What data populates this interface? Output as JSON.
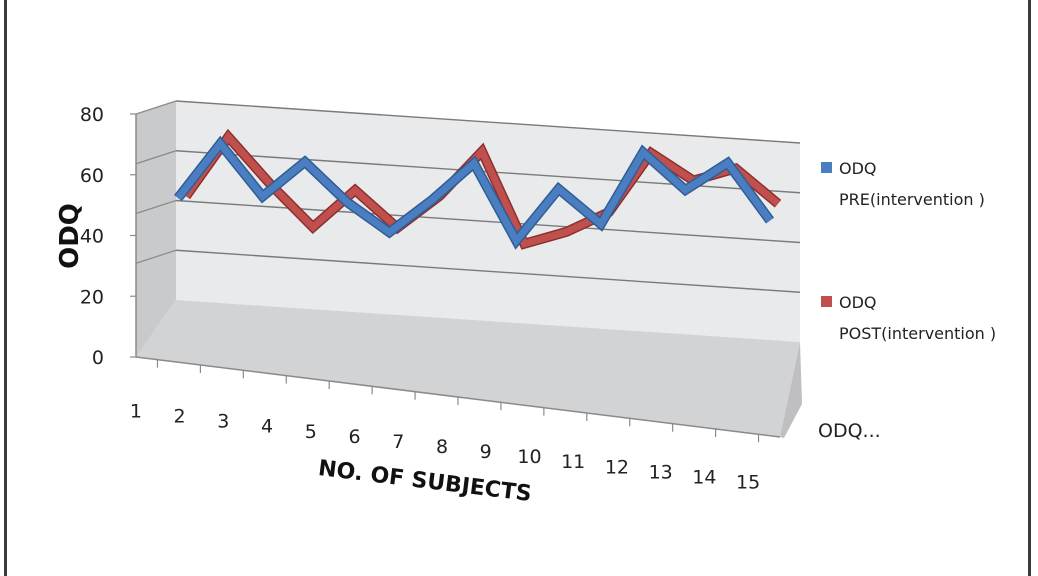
{
  "chart_data": {
    "type": "line",
    "style": "3d-line",
    "ylabel": "ODQ",
    "xlabel": "NO. OF SUBJECTS",
    "ylim": [
      0,
      80
    ],
    "yticks": [
      "0",
      "20",
      "40",
      "60",
      "80"
    ],
    "categories": [
      "1",
      "2",
      "3",
      "4",
      "5",
      "6",
      "7",
      "8",
      "9",
      "10",
      "11",
      "12",
      "13",
      "14",
      "15"
    ],
    "depth_label": "ODQ...",
    "grid": true,
    "legend_position": "right",
    "series": [
      {
        "name": "ODQ PRE(intervention )",
        "legend_lines": [
          "ODQ",
          "PRE(intervention )"
        ],
        "color": "#4a7ec0",
        "values": [
          41,
          64,
          44,
          59,
          44,
          33,
          47,
          63,
          33,
          55,
          42,
          72,
          58,
          70,
          48
        ]
      },
      {
        "name": "ODQ POST(intervention )",
        "legend_lines": [
          "ODQ",
          "POST(intervention )"
        ],
        "color": "#c0504d",
        "values": [
          42,
          67,
          49,
          33,
          49,
          35,
          49,
          68,
          32,
          38,
          47,
          72,
          62,
          68,
          55
        ]
      }
    ]
  }
}
